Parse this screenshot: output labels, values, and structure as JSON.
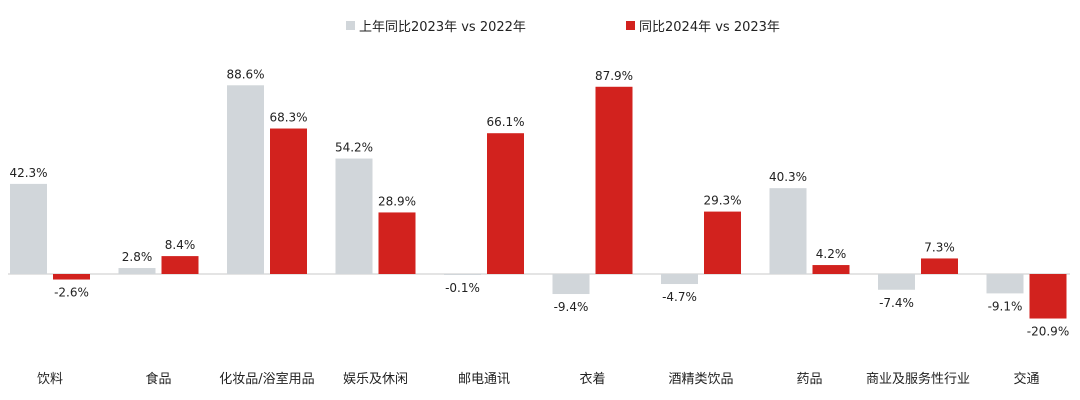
{
  "chart_data": {
    "type": "bar",
    "categories": [
      "饮料",
      "食品",
      "化妆品/浴室用品",
      "娱乐及休闲",
      "邮电通讯",
      "衣着",
      "酒精类饮品",
      "药品",
      "商业及服务性行业",
      "交通"
    ],
    "series": [
      {
        "name": "上年同比2023年 vs 2022年",
        "color": "#d1d6da",
        "values": [
          42.3,
          2.8,
          88.6,
          54.2,
          -0.1,
          -9.4,
          -4.7,
          40.3,
          -7.4,
          -9.1
        ],
        "labels": [
          "42.3%",
          "2.8%",
          "88.6%",
          "54.2%",
          "-0.1%",
          "-9.4%",
          "-4.7%",
          "40.3%",
          "-7.4%",
          "-9.1%"
        ]
      },
      {
        "name": "同比2024年 vs 2023年",
        "color": "#d2221e",
        "values": [
          -2.6,
          8.4,
          68.3,
          28.9,
          66.1,
          87.9,
          29.3,
          4.2,
          7.3,
          -20.9
        ],
        "labels": [
          "-2.6%",
          "8.4%",
          "68.3%",
          "28.9%",
          "66.1%",
          "87.9%",
          "29.3%",
          "4.2%",
          "7.3%",
          "-20.9%"
        ]
      }
    ],
    "ylim": [
      -25,
      95
    ],
    "grid": false,
    "legend_position": "top-center",
    "zero_line_color": "#c8c8c8"
  }
}
